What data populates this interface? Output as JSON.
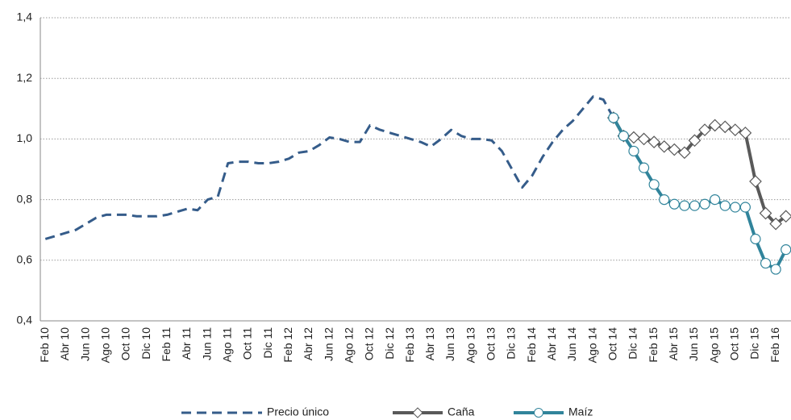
{
  "chart_data": {
    "type": "line",
    "categories": [
      "Feb 10",
      null,
      "Abr 10",
      null,
      "Jun 10",
      null,
      "Ago 10",
      null,
      "Oct 10",
      null,
      "Dic 10",
      null,
      "Feb 11",
      null,
      "Abr 11",
      null,
      "Jun 11",
      null,
      "Ago 11",
      null,
      "Oct 11",
      null,
      "Dic 11",
      null,
      "Feb 12",
      null,
      "Abr 12",
      null,
      "Jun 12",
      null,
      "Ago 12",
      null,
      "Oct 12",
      null,
      "Dic 12",
      null,
      "Feb 13",
      null,
      "Abr 13",
      null,
      "Jun 13",
      null,
      "Ago 13",
      null,
      "Oct 13",
      null,
      "Dic 13",
      null,
      "Feb 14",
      null,
      "Abr 14",
      null,
      "Jun 14",
      null,
      "Ago 14",
      null,
      "Oct 14",
      null,
      "Dic 14",
      null,
      "Feb 15",
      null,
      "Abr 15",
      null,
      "Jun 15",
      null,
      "Ago 15",
      null,
      "Oct 15",
      null,
      "Dic 15",
      null,
      "Feb 16",
      null
    ],
    "series": [
      {
        "name": "Precio único",
        "color": "#355c8a",
        "line_style": "dashed",
        "marker": "none",
        "values": [
          0.67,
          0.68,
          0.69,
          0.7,
          0.72,
          0.74,
          0.75,
          0.75,
          0.75,
          0.745,
          0.745,
          0.745,
          0.75,
          0.76,
          0.77,
          0.765,
          0.8,
          0.81,
          0.92,
          0.925,
          0.925,
          0.92,
          0.92,
          0.925,
          0.935,
          0.955,
          0.96,
          0.98,
          1.005,
          1.0,
          0.99,
          0.99,
          1.045,
          1.03,
          1.02,
          1.01,
          1.0,
          0.99,
          0.975,
          1.0,
          1.03,
          1.01,
          1.0,
          1.0,
          0.995,
          0.96,
          0.9,
          0.84,
          0.88,
          0.94,
          0.99,
          1.03,
          1.06,
          1.1,
          1.14,
          1.13,
          1.07,
          null,
          null,
          null,
          null,
          null,
          null,
          null,
          null,
          null,
          null,
          null,
          null,
          null,
          null,
          null,
          null,
          null
        ]
      },
      {
        "name": "Caña",
        "color": "#595959",
        "line_style": "solid",
        "marker": "diamond",
        "values": [
          null,
          null,
          null,
          null,
          null,
          null,
          null,
          null,
          null,
          null,
          null,
          null,
          null,
          null,
          null,
          null,
          null,
          null,
          null,
          null,
          null,
          null,
          null,
          null,
          null,
          null,
          null,
          null,
          null,
          null,
          null,
          null,
          null,
          null,
          null,
          null,
          null,
          null,
          null,
          null,
          null,
          null,
          null,
          null,
          null,
          null,
          null,
          null,
          null,
          null,
          null,
          null,
          null,
          null,
          null,
          null,
          1.07,
          1.01,
          1.005,
          1.0,
          0.99,
          0.975,
          0.965,
          0.955,
          0.995,
          1.03,
          1.045,
          1.04,
          1.03,
          1.02,
          0.86,
          0.755,
          0.72,
          0.745
        ]
      },
      {
        "name": "Maíz",
        "color": "#31849b",
        "line_style": "solid",
        "marker": "circle",
        "values": [
          null,
          null,
          null,
          null,
          null,
          null,
          null,
          null,
          null,
          null,
          null,
          null,
          null,
          null,
          null,
          null,
          null,
          null,
          null,
          null,
          null,
          null,
          null,
          null,
          null,
          null,
          null,
          null,
          null,
          null,
          null,
          null,
          null,
          null,
          null,
          null,
          null,
          null,
          null,
          null,
          null,
          null,
          null,
          null,
          null,
          null,
          null,
          null,
          null,
          null,
          null,
          null,
          null,
          null,
          null,
          null,
          1.07,
          1.01,
          0.96,
          0.905,
          0.85,
          0.8,
          0.785,
          0.78,
          0.78,
          0.785,
          0.8,
          0.78,
          0.775,
          0.775,
          0.67,
          0.59,
          0.57,
          0.635
        ]
      }
    ],
    "ylim": [
      0.4,
      1.4
    ],
    "yticks": [
      {
        "value": 0.4,
        "label": "0,4"
      },
      {
        "value": 0.6,
        "label": "0,6"
      },
      {
        "value": 0.8,
        "label": "0,8"
      },
      {
        "value": 1.0,
        "label": "1,0"
      },
      {
        "value": 1.2,
        "label": "1,2"
      },
      {
        "value": 1.4,
        "label": "1,4"
      }
    ],
    "grid": true,
    "legend": "bottom"
  }
}
